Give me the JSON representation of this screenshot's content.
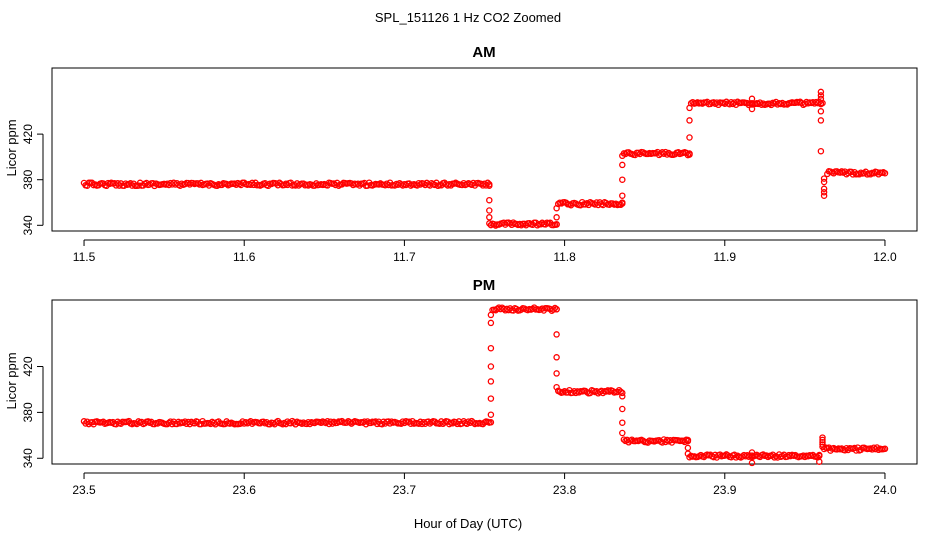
{
  "figure": {
    "title": "SPL_151126  1 Hz CO2 Zoomed",
    "xlabel": "Hour of Day (UTC)",
    "colors": {
      "points": "#ff0000",
      "axes": "#000000",
      "background": "#ffffff"
    }
  },
  "chart_data": [
    {
      "type": "scatter",
      "title": "AM",
      "xlabel": "",
      "ylabel": "Licor ppm",
      "xlim": [
        11.48,
        12.02
      ],
      "ylim": [
        335,
        478
      ],
      "xticks": [
        11.5,
        11.6,
        11.7,
        11.8,
        11.9,
        12.0
      ],
      "xtick_labels": [
        "11.5",
        "11.6",
        "11.7",
        "11.8",
        "11.9",
        "12.0"
      ],
      "yticks": [
        340,
        380,
        420
      ],
      "ytick_labels": [
        "340",
        "380",
        "420"
      ],
      "grid": false,
      "marker": "open-circle",
      "segments": [
        {
          "x": [
            11.5,
            11.753
          ],
          "y": 376
        },
        {
          "x": [
            11.753,
            11.795
          ],
          "y": 341
        },
        {
          "x": [
            11.796,
            11.836
          ],
          "y": 359
        },
        {
          "x": [
            11.837,
            11.878
          ],
          "y": 403
        },
        {
          "x": [
            11.879,
            11.961
          ],
          "y": 447
        },
        {
          "x": [
            11.964,
            12.0
          ],
          "y": 386
        }
      ],
      "transitions": [
        {
          "x": 11.753,
          "y": [
            376,
            362,
            353,
            347
          ]
        },
        {
          "x": 11.795,
          "y": [
            341,
            347,
            355
          ]
        },
        {
          "x": 11.836,
          "y": [
            359,
            366,
            380,
            393,
            401
          ]
        },
        {
          "x": 11.878,
          "y": [
            403,
            417,
            432,
            443
          ]
        },
        {
          "x": 11.917,
          "y": [
            442,
            447,
            451
          ]
        },
        {
          "x": 11.96,
          "y": [
            447,
            454,
            457,
            451,
            440,
            432,
            405
          ]
        },
        {
          "x": 11.962,
          "y": [
            381,
            378,
            372,
            369,
            366
          ]
        }
      ]
    },
    {
      "type": "scatter",
      "title": "PM",
      "xlabel": "",
      "ylabel": "Licor ppm",
      "xlim": [
        23.48,
        24.02
      ],
      "ylim": [
        335,
        478
      ],
      "xticks": [
        23.5,
        23.6,
        23.7,
        23.8,
        23.9,
        24.0
      ],
      "xtick_labels": [
        "23.5",
        "23.6",
        "23.7",
        "23.8",
        "23.9",
        "24.0"
      ],
      "yticks": [
        340,
        380,
        420
      ],
      "ytick_labels": [
        "340",
        "380",
        "420"
      ],
      "grid": false,
      "marker": "open-circle",
      "segments": [
        {
          "x": [
            23.5,
            23.754
          ],
          "y": 371
        },
        {
          "x": [
            23.755,
            23.795
          ],
          "y": 470
        },
        {
          "x": [
            23.796,
            23.836
          ],
          "y": 398
        },
        {
          "x": [
            23.837,
            23.877
          ],
          "y": 355
        },
        {
          "x": [
            23.878,
            23.959
          ],
          "y": 342
        },
        {
          "x": [
            23.962,
            24.0
          ],
          "y": 348
        }
      ],
      "transitions": [
        {
          "x": 23.754,
          "y": [
            378,
            392,
            407,
            420,
            436,
            458,
            465
          ]
        },
        {
          "x": 23.795,
          "y": [
            470,
            448,
            428,
            414,
            402
          ]
        },
        {
          "x": 23.836,
          "y": [
            394,
            383,
            371,
            362
          ]
        },
        {
          "x": 23.877,
          "y": [
            355,
            349,
            344
          ]
        },
        {
          "x": 23.917,
          "y": [
            345,
            341,
            336
          ]
        },
        {
          "x": 23.959,
          "y": [
            337,
            342
          ]
        },
        {
          "x": 23.961,
          "y": [
            358,
            356,
            354,
            352,
            350
          ]
        }
      ]
    }
  ]
}
